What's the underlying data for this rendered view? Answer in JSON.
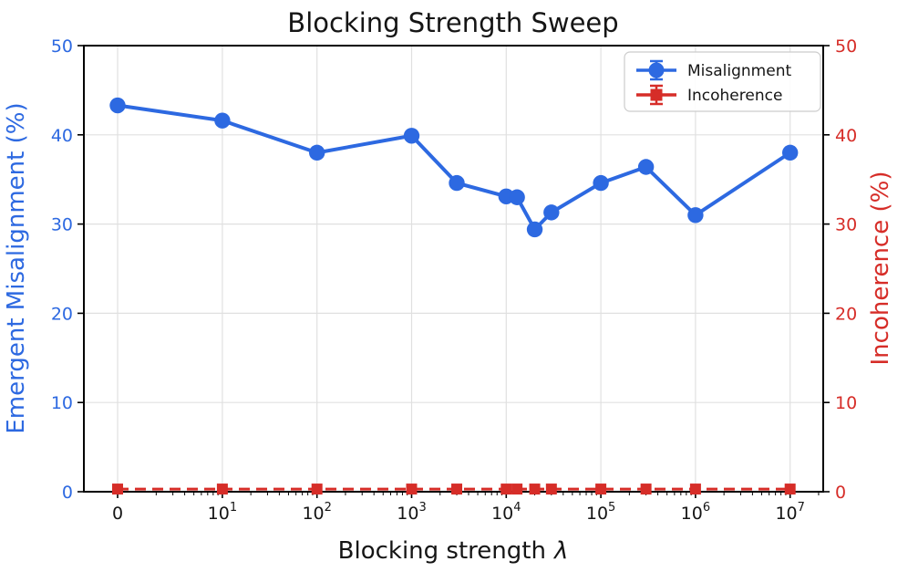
{
  "title": "Blocking Strength Sweep",
  "axes": {
    "x_label_text": "Blocking strength",
    "x_label_symbol": "λ",
    "y_left_label": "Emergent Misalignment (%)",
    "y_right_label": "Incoherence (%)",
    "y_ticks": [
      0,
      10,
      20,
      30,
      40,
      50
    ],
    "x_ticks": [
      {
        "v": 0,
        "label": "0"
      },
      {
        "v": 10,
        "base": "10",
        "exp": "1"
      },
      {
        "v": 100,
        "base": "10",
        "exp": "2"
      },
      {
        "v": 1000,
        "base": "10",
        "exp": "3"
      },
      {
        "v": 10000,
        "base": "10",
        "exp": "4"
      },
      {
        "v": 100000,
        "base": "10",
        "exp": "5"
      },
      {
        "v": 1000000,
        "base": "10",
        "exp": "6"
      },
      {
        "v": 10000000,
        "base": "10",
        "exp": "7"
      }
    ]
  },
  "legend": {
    "items": [
      {
        "label": "Misalignment",
        "marker": "circle",
        "color": "#2d69e1"
      },
      {
        "label": "Incoherence",
        "marker": "square",
        "color": "#d62d28"
      }
    ]
  },
  "colors": {
    "misalignment_blue": "#2d69e1",
    "incoherence_red": "#d62d28",
    "grid": "#e0e0e0",
    "spine": "#000000",
    "tick_text_x": "#151515"
  },
  "chart_data": {
    "type": "line",
    "title": "Blocking Strength Sweep",
    "xlabel": "Blocking strength λ",
    "x_scale": "symlog",
    "ylabel_left": "Emergent Misalignment (%)",
    "ylabel_right": "Incoherence (%)",
    "ylim_left": [
      0,
      50
    ],
    "ylim_right": [
      0,
      50
    ],
    "grid": true,
    "legend_position": "upper right",
    "x": [
      0,
      10,
      100,
      1000,
      3000,
      10000,
      13000,
      20000,
      30000,
      100000,
      300000,
      1000000,
      10000000
    ],
    "series": [
      {
        "name": "Misalignment",
        "axis": "left",
        "marker": "circle",
        "linestyle": "solid",
        "color": "#2d69e1",
        "values": [
          43.3,
          41.6,
          38.0,
          39.9,
          34.6,
          33.1,
          33.0,
          29.4,
          31.3,
          34.6,
          36.4,
          31.0,
          38.0
        ]
      },
      {
        "name": "Incoherence",
        "axis": "right",
        "marker": "square",
        "linestyle": "dashed",
        "color": "#d62d28",
        "values": [
          0.3,
          0.3,
          0.3,
          0.3,
          0.3,
          0.3,
          0.3,
          0.3,
          0.3,
          0.3,
          0.3,
          0.3,
          0.3
        ]
      }
    ]
  }
}
